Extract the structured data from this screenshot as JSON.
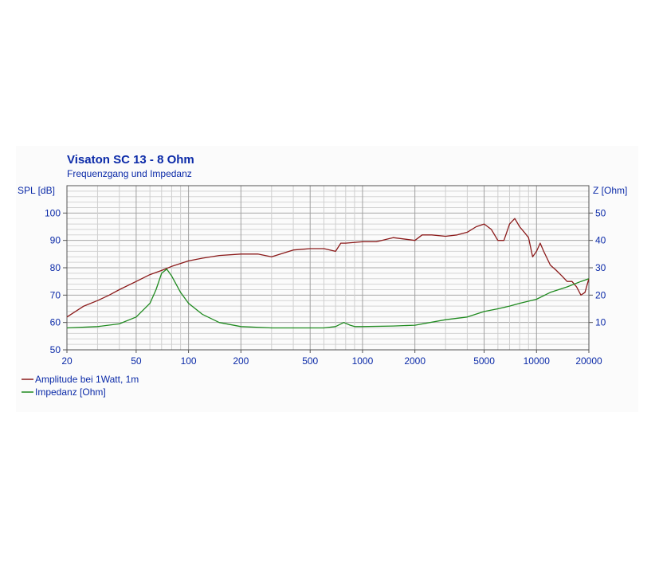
{
  "chart_data": {
    "type": "line",
    "title": "Visaton SC 13 - 8 Ohm",
    "subtitle": "Frequenzgang und Impedanz",
    "ylabel_left": "SPL [dB]",
    "ylabel_right": "Z [Ohm]",
    "x_scale": "log",
    "xlim": [
      20,
      20000
    ],
    "ylim_left": [
      50,
      110
    ],
    "ylim_right": [
      0,
      60
    ],
    "x_ticks": [
      20,
      50,
      100,
      200,
      500,
      1000,
      2000,
      5000,
      10000,
      20000
    ],
    "x_tick_labels": [
      "20",
      "50",
      "100",
      "200",
      "500",
      "1000",
      "2000",
      "5000",
      "10000",
      "20000"
    ],
    "y_ticks_left": [
      50,
      60,
      70,
      80,
      90,
      100
    ],
    "y_tick_labels_left": [
      "50",
      "60",
      "70",
      "80",
      "90",
      "100"
    ],
    "y_ticks_right": [
      10,
      20,
      30,
      40,
      50
    ],
    "y_tick_labels_right": [
      "10",
      "20",
      "30",
      "40",
      "50"
    ],
    "grid": true,
    "legend_position": "bottom-left",
    "series": [
      {
        "name": "Amplitude bei 1Watt, 1m",
        "axis": "left",
        "color": "#8b1a1a",
        "x": [
          20,
          25,
          30,
          35,
          40,
          50,
          60,
          70,
          80,
          100,
          120,
          150,
          200,
          250,
          300,
          400,
          500,
          600,
          700,
          750,
          800,
          1000,
          1200,
          1500,
          2000,
          2200,
          2500,
          3000,
          3500,
          4000,
          4500,
          5000,
          5500,
          6000,
          6500,
          7000,
          7500,
          8000,
          8500,
          9000,
          9500,
          10000,
          10500,
          11000,
          12000,
          13000,
          14000,
          15000,
          16000,
          17000,
          18000,
          19000,
          20000
        ],
        "y": [
          62,
          66,
          68,
          70,
          72,
          75,
          77.5,
          79,
          80.5,
          82.5,
          83.5,
          84.5,
          85,
          85,
          84,
          86.5,
          87,
          87,
          86,
          89,
          89,
          89.5,
          89.5,
          91,
          90,
          92,
          92,
          91.5,
          92,
          93,
          95,
          96,
          94,
          90,
          90,
          96,
          98,
          95,
          93,
          91,
          84,
          86,
          89,
          86,
          81,
          79,
          77,
          75,
          75,
          73,
          70,
          71,
          76
        ]
      },
      {
        "name": "Impedanz [Ohm]",
        "axis": "right",
        "color": "#1f8a1f",
        "x": [
          20,
          30,
          40,
          50,
          60,
          65,
          70,
          75,
          80,
          90,
          100,
          120,
          150,
          200,
          300,
          500,
          600,
          700,
          780,
          850,
          900,
          1000,
          1500,
          2000,
          3000,
          4000,
          5000,
          6000,
          7000,
          8000,
          10000,
          12000,
          15000,
          18000,
          20000
        ],
        "y": [
          8,
          8.5,
          9.5,
          12,
          17,
          22,
          28,
          29.5,
          27,
          21,
          17,
          13,
          10,
          8.5,
          8,
          8,
          8,
          8.5,
          10,
          9,
          8.5,
          8.5,
          8.7,
          9,
          11,
          12,
          14,
          15,
          16,
          17,
          18.5,
          21,
          23,
          25,
          26
        ]
      }
    ]
  }
}
